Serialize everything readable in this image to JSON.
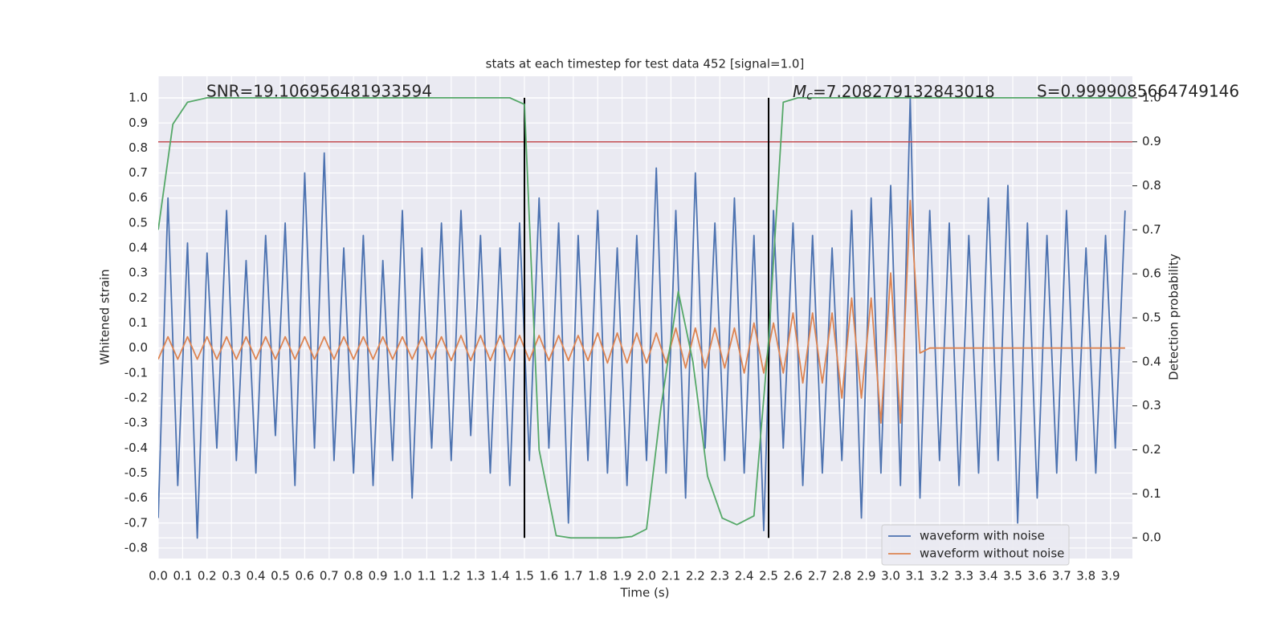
{
  "chart_data": {
    "type": "line",
    "title": "stats at each timestep for test data 452 [signal=1.0]",
    "xlabel": "Time (s)",
    "ylabel": "Whitened strain",
    "y2label": "Detection probability",
    "annotations": {
      "snr": "SNR=19.106956481933594",
      "mc": {
        "symbol": "M",
        "subscript": "c",
        "text": "=7.208279132843018"
      },
      "s": "S=0.9999085664749146"
    },
    "threshold": {
      "value": 0.9,
      "axis": "y2",
      "color": "#c44e52"
    },
    "vlines": {
      "x": [
        1.5,
        2.5
      ],
      "range": [
        0,
        1
      ],
      "axis": "y2",
      "color": "#000000"
    },
    "x": [
      0,
      0.04,
      0.08,
      0.12,
      0.16,
      0.2,
      0.24,
      0.28,
      0.32,
      0.36,
      0.4,
      0.44,
      0.48,
      0.52,
      0.56,
      0.6,
      0.64,
      0.68,
      0.72,
      0.76,
      0.8,
      0.84,
      0.88,
      0.92,
      0.96,
      1,
      1.04,
      1.08,
      1.12,
      1.16,
      1.2,
      1.24,
      1.28,
      1.32,
      1.36,
      1.4,
      1.44,
      1.48,
      1.52,
      1.56,
      1.6,
      1.64,
      1.68,
      1.72,
      1.76,
      1.8,
      1.84,
      1.88,
      1.92,
      1.96,
      2,
      2.04,
      2.08,
      2.12,
      2.16,
      2.2,
      2.24,
      2.28,
      2.32,
      2.36,
      2.4,
      2.44,
      2.48,
      2.52,
      2.56,
      2.6,
      2.64,
      2.68,
      2.72,
      2.76,
      2.8,
      2.84,
      2.88,
      2.92,
      2.96,
      3,
      3.04,
      3.08,
      3.12,
      3.16,
      3.2,
      3.24,
      3.28,
      3.32,
      3.36,
      3.4,
      3.44,
      3.48,
      3.52,
      3.56,
      3.6,
      3.64,
      3.68,
      3.72,
      3.76,
      3.8,
      3.84,
      3.88,
      3.92,
      3.96
    ],
    "series": [
      {
        "name": "waveform with noise",
        "color": "#4c72b0",
        "values": [
          -0.68,
          0.6,
          -0.55,
          0.42,
          -0.76,
          0.38,
          -0.4,
          0.55,
          -0.45,
          0.35,
          -0.5,
          0.45,
          -0.35,
          0.5,
          -0.55,
          0.7,
          -0.4,
          0.78,
          -0.45,
          0.4,
          -0.5,
          0.45,
          -0.55,
          0.35,
          -0.45,
          0.55,
          -0.6,
          0.4,
          -0.4,
          0.5,
          -0.45,
          0.55,
          -0.35,
          0.45,
          -0.5,
          0.4,
          -0.55,
          0.5,
          -0.45,
          0.6,
          -0.4,
          0.5,
          -0.7,
          0.45,
          -0.45,
          0.55,
          -0.5,
          0.4,
          -0.55,
          0.45,
          -0.45,
          0.72,
          -0.5,
          0.55,
          -0.6,
          0.7,
          -0.4,
          0.5,
          -0.45,
          0.6,
          -0.5,
          0.45,
          -0.73,
          0.55,
          -0.4,
          0.5,
          -0.55,
          0.45,
          -0.5,
          0.4,
          -0.45,
          0.55,
          -0.68,
          0.6,
          -0.5,
          0.65,
          -0.55,
          1.0,
          -0.6,
          0.55,
          -0.45,
          0.5,
          -0.55,
          0.45,
          -0.5,
          0.6,
          -0.45,
          0.65,
          -0.7,
          0.5,
          -0.6,
          0.45,
          -0.5,
          0.55,
          -0.45,
          0.4,
          -0.5,
          0.45,
          -0.4,
          0.55
        ]
      },
      {
        "name": "waveform without noise",
        "color": "#dd8452",
        "values": [
          -0.045,
          0.045,
          -0.045,
          0.045,
          -0.045,
          0.045,
          -0.045,
          0.045,
          -0.045,
          0.045,
          -0.045,
          0.045,
          -0.045,
          0.045,
          -0.045,
          0.045,
          -0.045,
          0.045,
          -0.045,
          0.045,
          -0.045,
          0.045,
          -0.045,
          0.045,
          -0.045,
          0.045,
          -0.045,
          0.045,
          -0.045,
          0.045,
          -0.05,
          0.05,
          -0.05,
          0.05,
          -0.05,
          0.05,
          -0.05,
          0.05,
          -0.05,
          0.05,
          -0.05,
          0.05,
          -0.05,
          0.05,
          -0.05,
          0.06,
          -0.06,
          0.06,
          -0.06,
          0.06,
          -0.06,
          0.06,
          -0.06,
          0.08,
          -0.08,
          0.08,
          -0.08,
          0.08,
          -0.08,
          0.08,
          -0.1,
          0.1,
          -0.1,
          0.1,
          -0.1,
          0.14,
          -0.14,
          0.14,
          -0.14,
          0.14,
          -0.2,
          0.2,
          -0.2,
          0.2,
          -0.3,
          0.3,
          -0.3,
          0.59,
          -0.02,
          0,
          0,
          0,
          0,
          0,
          0,
          0,
          0,
          0,
          0,
          0,
          0,
          0,
          0,
          0,
          0,
          0,
          0,
          0,
          0,
          0
        ]
      },
      {
        "name": "detection probability",
        "color": "#55a868",
        "axis": "y2",
        "x": [
          0,
          0.06,
          0.12,
          0.2,
          1.44,
          1.5,
          1.56,
          1.63,
          1.69,
          1.88,
          1.94,
          2.0,
          2.06,
          2.13,
          2.19,
          2.25,
          2.31,
          2.37,
          2.44,
          2.5,
          2.56,
          2.62,
          3.99
        ],
        "values": [
          0.7,
          0.94,
          0.99,
          1.0,
          1.0,
          0.985,
          0.2,
          0.005,
          0.0,
          0.0,
          0.003,
          0.02,
          0.3,
          0.56,
          0.4,
          0.14,
          0.045,
          0.03,
          0.05,
          0.45,
          0.99,
          1.0,
          1.0
        ]
      }
    ],
    "xlim": [
      0,
      3.99
    ],
    "ylim": [
      -0.842,
      1.087
    ],
    "y2lim": [
      -0.047,
      1.049
    ],
    "xticks": [
      {
        "value": 0,
        "label": "0.0"
      },
      0.1,
      0.2,
      0.3,
      0.4,
      0.5,
      0.6,
      0.7,
      0.8,
      0.9,
      {
        "value": 1,
        "label": "1.0"
      },
      1.1,
      1.2,
      1.3,
      1.4,
      1.5,
      1.6,
      1.7,
      1.8,
      1.9,
      {
        "value": 2,
        "label": "2.0"
      },
      2.1,
      2.2,
      2.3,
      2.4,
      2.5,
      2.6,
      2.7,
      2.8,
      2.9,
      {
        "value": 3,
        "label": "3.0"
      },
      3.1,
      3.2,
      3.3,
      3.4,
      3.5,
      3.6,
      3.7,
      3.8,
      3.9
    ],
    "yticks": [
      -0.8,
      -0.7,
      -0.6,
      -0.5,
      -0.4,
      -0.3,
      -0.2,
      -0.1,
      {
        "value": 0,
        "label": "0.0"
      },
      0.1,
      0.2,
      0.3,
      0.4,
      0.5,
      0.6,
      0.7,
      0.8,
      0.9,
      {
        "value": 1,
        "label": "1.0"
      }
    ],
    "y2ticks": [
      {
        "value": 0,
        "label": "0.0"
      },
      0.1,
      0.2,
      0.3,
      0.4,
      0.5,
      0.6,
      0.7,
      0.8,
      0.9,
      {
        "value": 1,
        "label": "1.0"
      }
    ],
    "grid": true,
    "legend": {
      "loc": "lower right",
      "series": [
        0,
        1
      ]
    }
  }
}
